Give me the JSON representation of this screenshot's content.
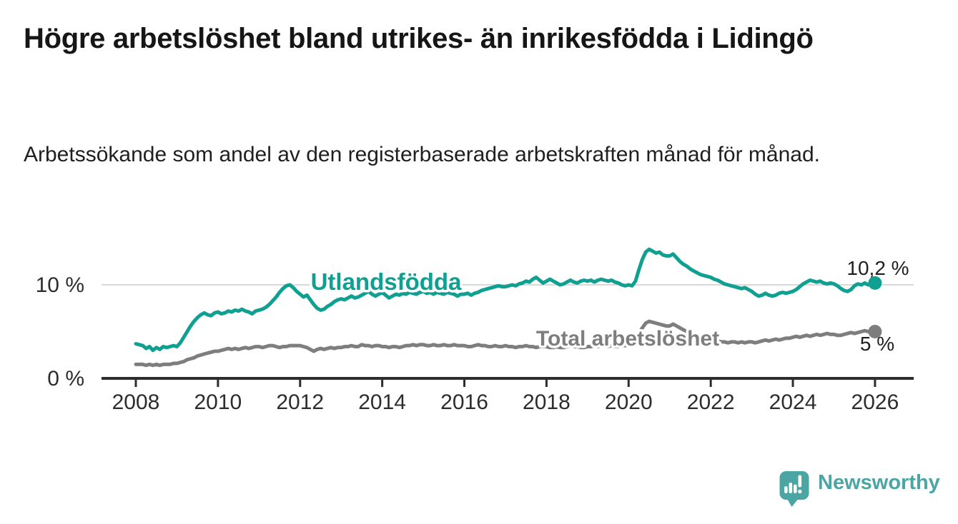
{
  "header": {
    "title": "Högre arbetslöshet bland utrikes- än inrikesfödda i Lidingö",
    "subtitle": "Arbetssökande som andel av den registerbaserade arbetskraften månad för månad."
  },
  "chart_data": {
    "type": "line",
    "title": "Högre arbetslöshet bland utrikes- än inrikesfödda i Lidingö",
    "subtitle": "Arbetssökande som andel av den registerbaserade arbetskraften månad för månad.",
    "cadence": "monthly",
    "x": {
      "start_year": 2008,
      "end_year": 2026,
      "points_per_year": 12,
      "tick_years": [
        2008,
        2010,
        2012,
        2014,
        2016,
        2018,
        2020,
        2022,
        2024,
        2026
      ],
      "tick_labels": [
        "2008",
        "2010",
        "2012",
        "2014",
        "2016",
        "2018",
        "2020",
        "2022",
        "2024",
        "2026"
      ]
    },
    "y": {
      "unit": "%",
      "ylim": [
        0,
        15.3
      ],
      "ticks": [
        {
          "value": 0,
          "label": "0 %"
        },
        {
          "value": 10,
          "label": "10 %"
        }
      ],
      "gridline_at": 10
    },
    "legend_position": "inline-labels-on-lines",
    "series": [
      {
        "id": "utlandsfodda",
        "name": "Utlandsfödda",
        "color": "#0FA091",
        "end_value": 10.2,
        "end_label": "10,2 %",
        "values": [
          3.7,
          3.6,
          3.5,
          3.2,
          3.4,
          3.0,
          3.3,
          3.1,
          3.4,
          3.3,
          3.4,
          3.5,
          3.4,
          3.8,
          4.4,
          5.0,
          5.6,
          6.1,
          6.5,
          6.8,
          7.0,
          6.8,
          6.7,
          7.0,
          7.1,
          6.9,
          7.0,
          7.2,
          7.1,
          7.3,
          7.2,
          7.4,
          7.2,
          7.1,
          6.9,
          7.2,
          7.3,
          7.4,
          7.6,
          7.9,
          8.3,
          8.7,
          9.2,
          9.6,
          9.9,
          10.0,
          9.7,
          9.3,
          9.0,
          8.7,
          8.9,
          8.4,
          7.9,
          7.5,
          7.3,
          7.4,
          7.7,
          7.9,
          8.2,
          8.4,
          8.5,
          8.4,
          8.6,
          8.8,
          8.6,
          8.7,
          8.9,
          9.1,
          9.3,
          9.0,
          8.8,
          9.0,
          9.2,
          8.9,
          8.6,
          8.8,
          9.0,
          8.9,
          9.1,
          9.0,
          9.2,
          9.1,
          9.0,
          9.2,
          9.3,
          9.1,
          9.2,
          9.0,
          9.2,
          9.1,
          9.0,
          9.2,
          9.1,
          9.0,
          8.8,
          9.0,
          9.0,
          9.1,
          8.9,
          9.1,
          9.2,
          9.4,
          9.5,
          9.6,
          9.7,
          9.8,
          9.9,
          9.8,
          9.8,
          9.9,
          10.0,
          9.9,
          10.1,
          10.2,
          10.4,
          10.3,
          10.6,
          10.8,
          10.5,
          10.2,
          10.4,
          10.6,
          10.4,
          10.2,
          10.0,
          10.1,
          10.3,
          10.5,
          10.3,
          10.2,
          10.4,
          10.5,
          10.4,
          10.5,
          10.3,
          10.5,
          10.6,
          10.5,
          10.4,
          10.5,
          10.3,
          10.2,
          10.0,
          9.9,
          10.0,
          9.9,
          10.4,
          11.6,
          12.7,
          13.5,
          13.8,
          13.6,
          13.4,
          13.5,
          13.2,
          13.1,
          13.1,
          13.3,
          12.9,
          12.5,
          12.2,
          12.0,
          11.7,
          11.5,
          11.3,
          11.1,
          11.0,
          10.9,
          10.8,
          10.6,
          10.5,
          10.3,
          10.1,
          10.0,
          9.9,
          9.8,
          9.7,
          9.6,
          9.7,
          9.5,
          9.3,
          9.0,
          8.8,
          8.9,
          9.1,
          8.9,
          8.8,
          8.9,
          9.1,
          9.2,
          9.1,
          9.2,
          9.3,
          9.5,
          9.8,
          10.1,
          10.3,
          10.5,
          10.4,
          10.3,
          10.4,
          10.2,
          10.1,
          10.2,
          10.1,
          9.9,
          9.6,
          9.4,
          9.3,
          9.5,
          9.9,
          10.1,
          10.0,
          10.2,
          10.0,
          10.1,
          10.2
        ]
      },
      {
        "id": "total",
        "name": "Total arbetslöshet",
        "color": "#7E7E7E",
        "end_value": 5.0,
        "end_label": "5 %",
        "values": [
          1.5,
          1.5,
          1.5,
          1.4,
          1.5,
          1.4,
          1.5,
          1.4,
          1.5,
          1.5,
          1.5,
          1.6,
          1.6,
          1.7,
          1.8,
          2.0,
          2.1,
          2.2,
          2.4,
          2.5,
          2.6,
          2.7,
          2.8,
          2.9,
          2.9,
          3.0,
          3.1,
          3.2,
          3.1,
          3.2,
          3.1,
          3.2,
          3.3,
          3.2,
          3.3,
          3.4,
          3.4,
          3.3,
          3.4,
          3.5,
          3.5,
          3.4,
          3.3,
          3.4,
          3.4,
          3.5,
          3.5,
          3.5,
          3.5,
          3.4,
          3.3,
          3.1,
          2.9,
          3.1,
          3.2,
          3.1,
          3.2,
          3.3,
          3.2,
          3.3,
          3.3,
          3.4,
          3.4,
          3.5,
          3.4,
          3.4,
          3.6,
          3.5,
          3.5,
          3.4,
          3.5,
          3.5,
          3.4,
          3.4,
          3.3,
          3.4,
          3.4,
          3.3,
          3.4,
          3.5,
          3.5,
          3.6,
          3.5,
          3.6,
          3.6,
          3.5,
          3.5,
          3.6,
          3.5,
          3.5,
          3.6,
          3.5,
          3.5,
          3.6,
          3.5,
          3.5,
          3.5,
          3.4,
          3.4,
          3.5,
          3.6,
          3.5,
          3.5,
          3.4,
          3.4,
          3.5,
          3.4,
          3.4,
          3.5,
          3.4,
          3.4,
          3.3,
          3.4,
          3.4,
          3.5,
          3.4,
          3.4,
          3.3,
          3.4,
          3.4,
          3.4,
          3.3,
          3.3,
          3.4,
          3.3,
          3.3,
          3.4,
          3.5,
          3.4,
          3.4,
          3.3,
          3.3,
          3.4,
          3.4,
          3.5,
          3.4,
          3.5,
          3.5,
          3.4,
          3.5,
          3.4,
          3.4,
          3.5,
          3.5,
          3.6,
          3.6,
          4.0,
          4.7,
          5.4,
          5.9,
          6.1,
          6.0,
          5.9,
          5.8,
          5.7,
          5.6,
          5.6,
          5.8,
          5.6,
          5.4,
          5.2,
          5.0,
          4.8,
          4.6,
          4.5,
          4.3,
          4.2,
          4.1,
          4.1,
          4.0,
          4.0,
          3.9,
          3.9,
          3.8,
          3.9,
          3.9,
          3.8,
          3.9,
          3.8,
          3.9,
          3.9,
          3.8,
          3.9,
          4.0,
          4.1,
          4.0,
          4.1,
          4.2,
          4.1,
          4.2,
          4.3,
          4.3,
          4.4,
          4.5,
          4.4,
          4.5,
          4.6,
          4.5,
          4.6,
          4.7,
          4.6,
          4.7,
          4.8,
          4.7,
          4.7,
          4.6,
          4.6,
          4.7,
          4.8,
          4.9,
          4.8,
          4.9,
          5.0,
          5.1,
          5.0,
          5.0,
          5.0
        ]
      }
    ]
  },
  "colors": {
    "accent_teal": "#0FA091",
    "series_gray": "#7E7E7E",
    "grid": "#D8D8D8",
    "axis": "#2D2D2D",
    "text_dark": "#1F1F1F",
    "brand_teal": "#4BA5A2"
  },
  "footer": {
    "brand": "Newsworthy"
  }
}
